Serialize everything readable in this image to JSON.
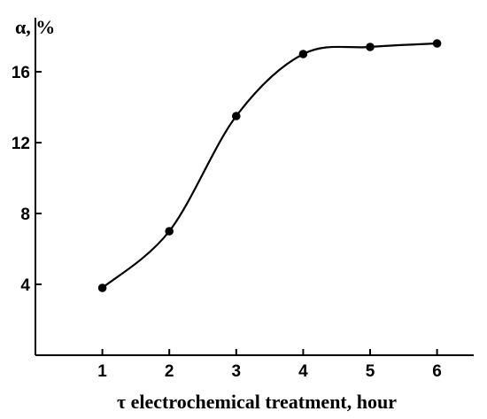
{
  "chart_data": {
    "type": "line",
    "xlabel": "τ  electrochemical treatment, hour",
    "ylabel": "α, %",
    "x": [
      1,
      2,
      3,
      4,
      5,
      6
    ],
    "series": [
      {
        "values": [
          3.8,
          7.0,
          13.5,
          17.0,
          17.4,
          17.6
        ]
      }
    ],
    "xticks": [
      1,
      2,
      3,
      4,
      5,
      6
    ],
    "yticks": [
      4,
      8,
      12,
      16
    ],
    "xlim": [
      0,
      6.5
    ],
    "ylim": [
      0,
      18
    ],
    "grid": false,
    "line_color": "#000000",
    "marker_color": "#000000"
  }
}
